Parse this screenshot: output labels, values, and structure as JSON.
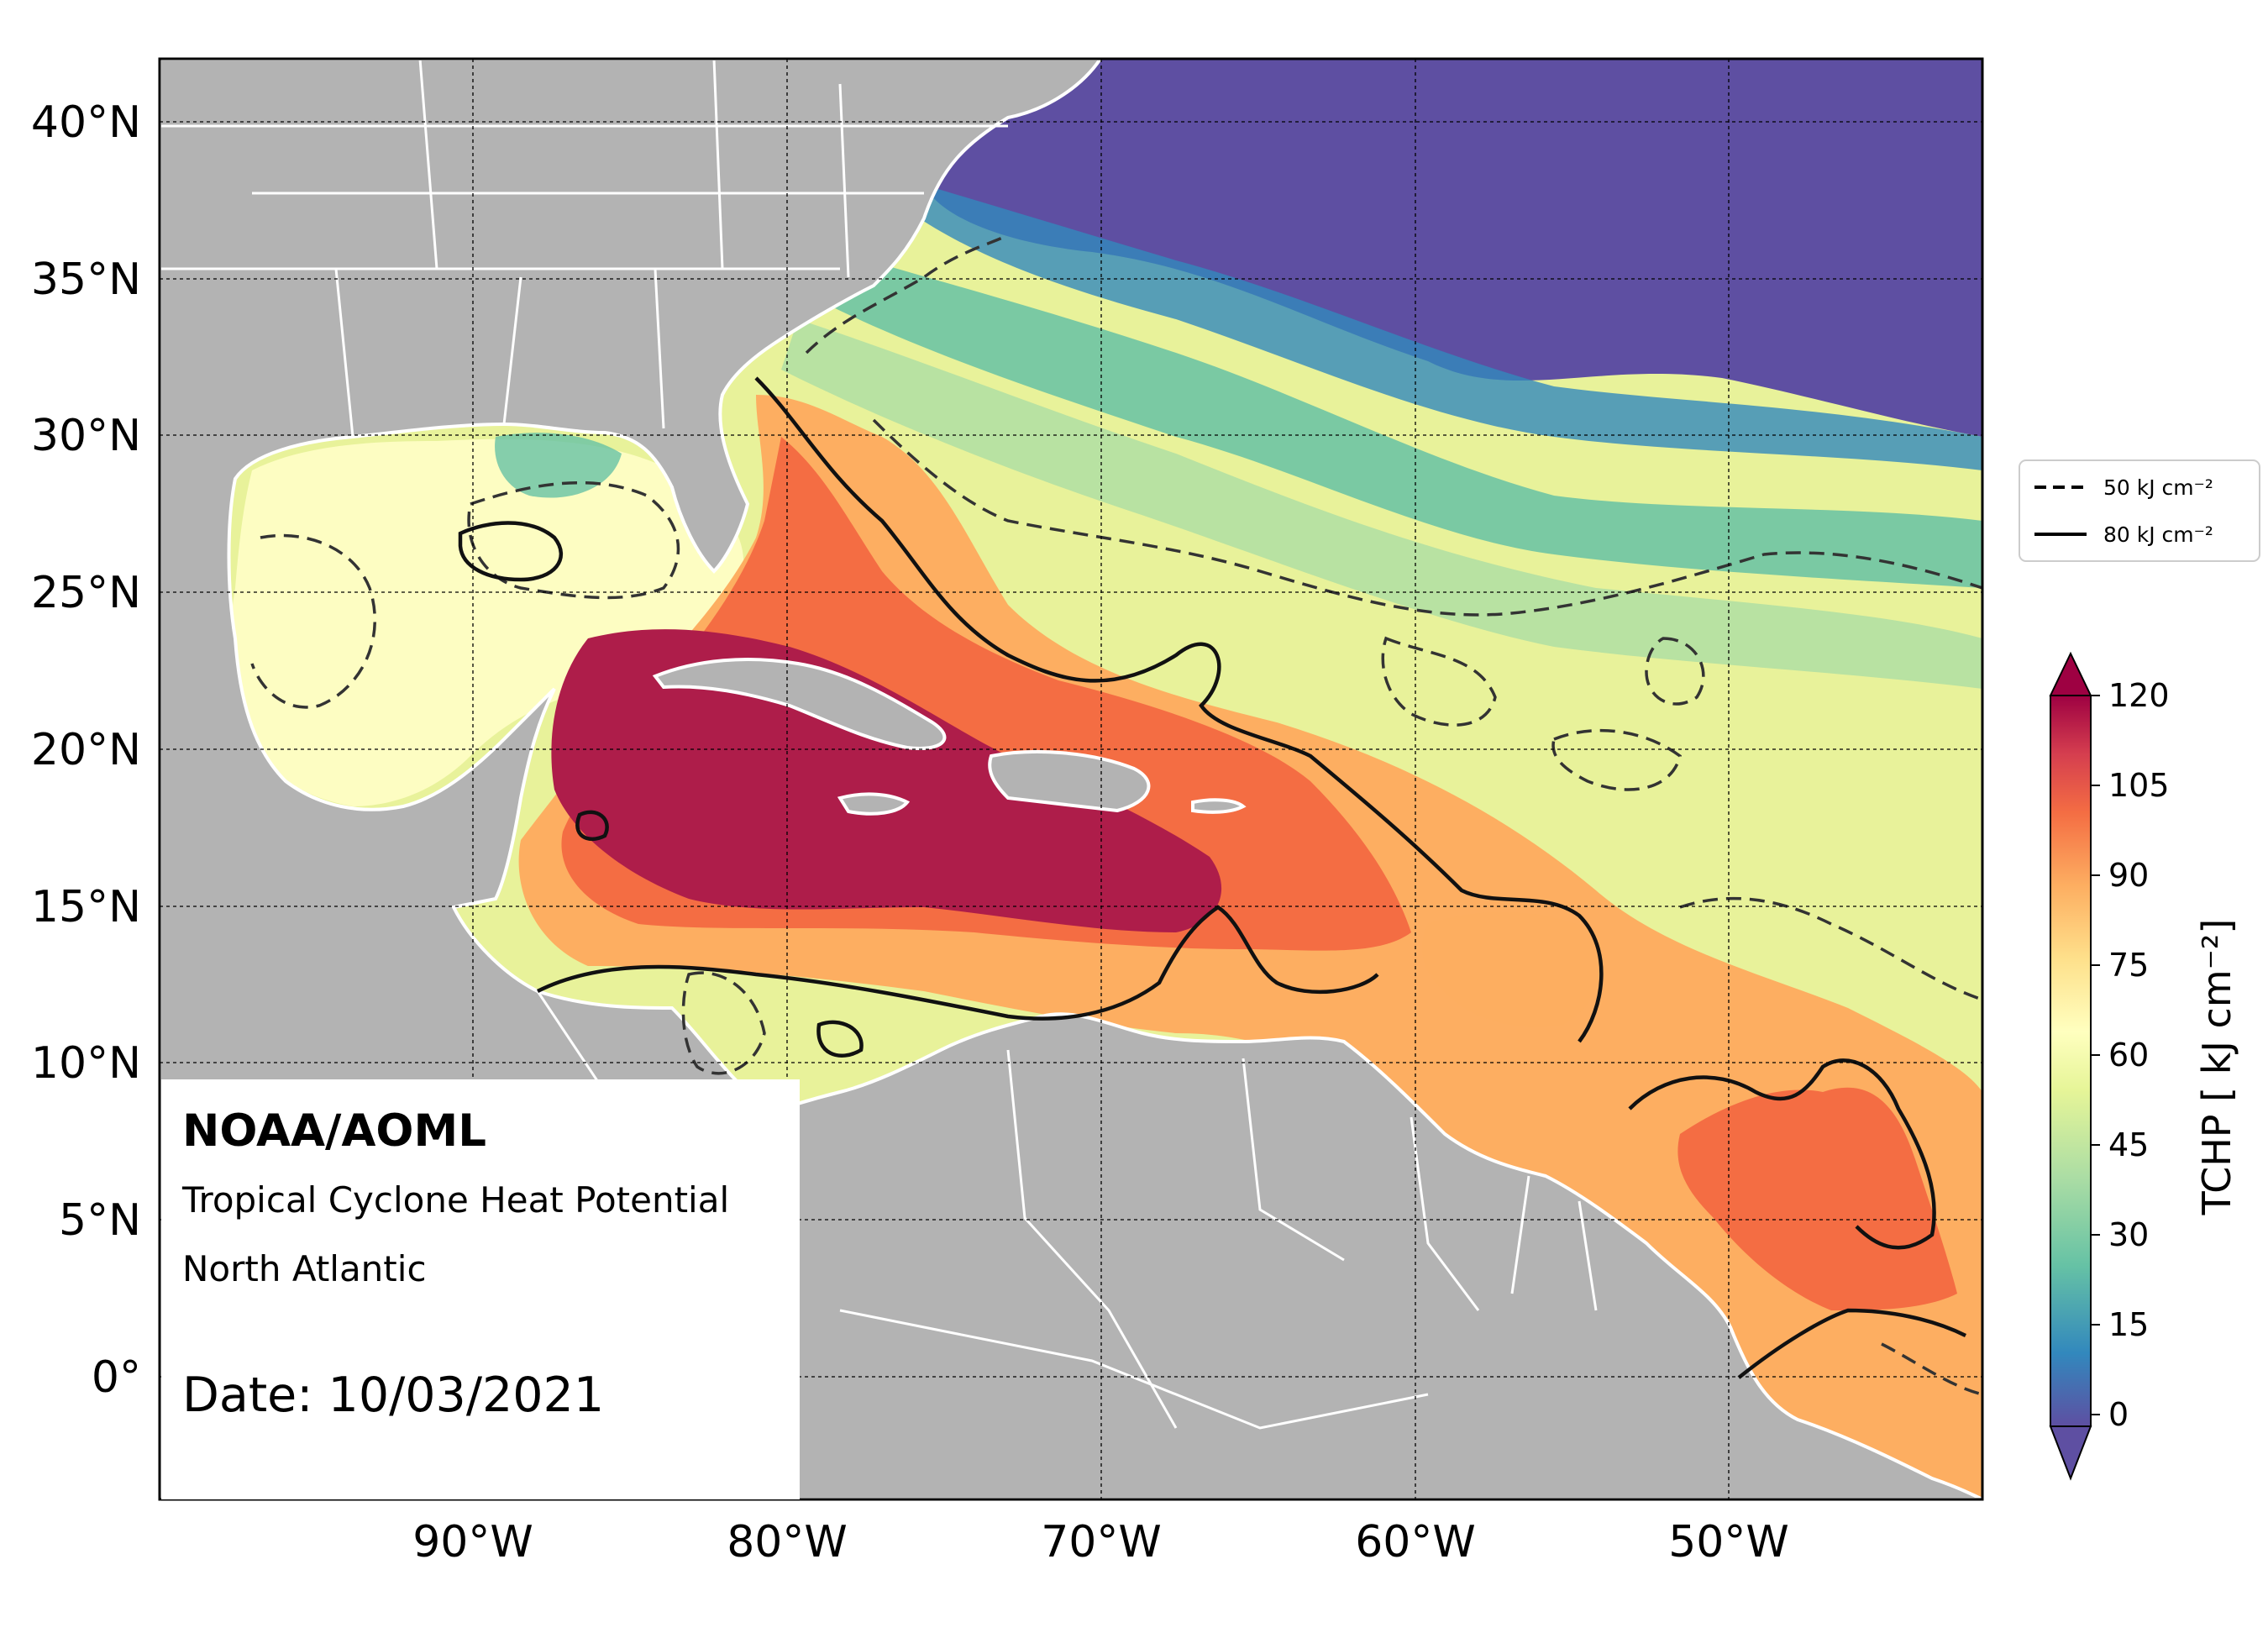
{
  "map": {
    "lat_ticks": [
      "40°N",
      "35°N",
      "30°N",
      "25°N",
      "20°N",
      "15°N",
      "10°N",
      "5°N",
      "0°"
    ],
    "lon_ticks": [
      "90°W",
      "80°W",
      "70°W",
      "60°W",
      "50°W"
    ],
    "extent": {
      "lon": [
        -100,
        -42
      ],
      "lat": [
        -4,
        42
      ]
    },
    "gridlines": true
  },
  "legend": {
    "items": [
      {
        "label": "50 kJ cm⁻²",
        "style": "dashed"
      },
      {
        "label": "80 kJ cm⁻²",
        "style": "solid"
      }
    ],
    "placement": "right"
  },
  "colorbar": {
    "ticks": [
      "120",
      "105",
      "90",
      "75",
      "60",
      "45",
      "30",
      "15",
      "0"
    ],
    "title": "TCHP [ kJ cm⁻²]",
    "range": [
      0,
      120
    ],
    "extend": "both"
  },
  "info": {
    "org": "NOAA/AOML",
    "product": "Tropical Cyclone Heat Potential",
    "region": "North Atlantic",
    "date": "Date: 10/03/2021"
  },
  "colors": {
    "land": "#b3b3b3",
    "borders": "#ffffff",
    "contour": "#000000",
    "scale": [
      "#5e4fa2",
      "#3288bd",
      "#66c2a5",
      "#abdda4",
      "#e6f598",
      "#ffffbf",
      "#fee08b",
      "#fdae61",
      "#f46d43",
      "#d53e4f",
      "#9e0142"
    ]
  }
}
